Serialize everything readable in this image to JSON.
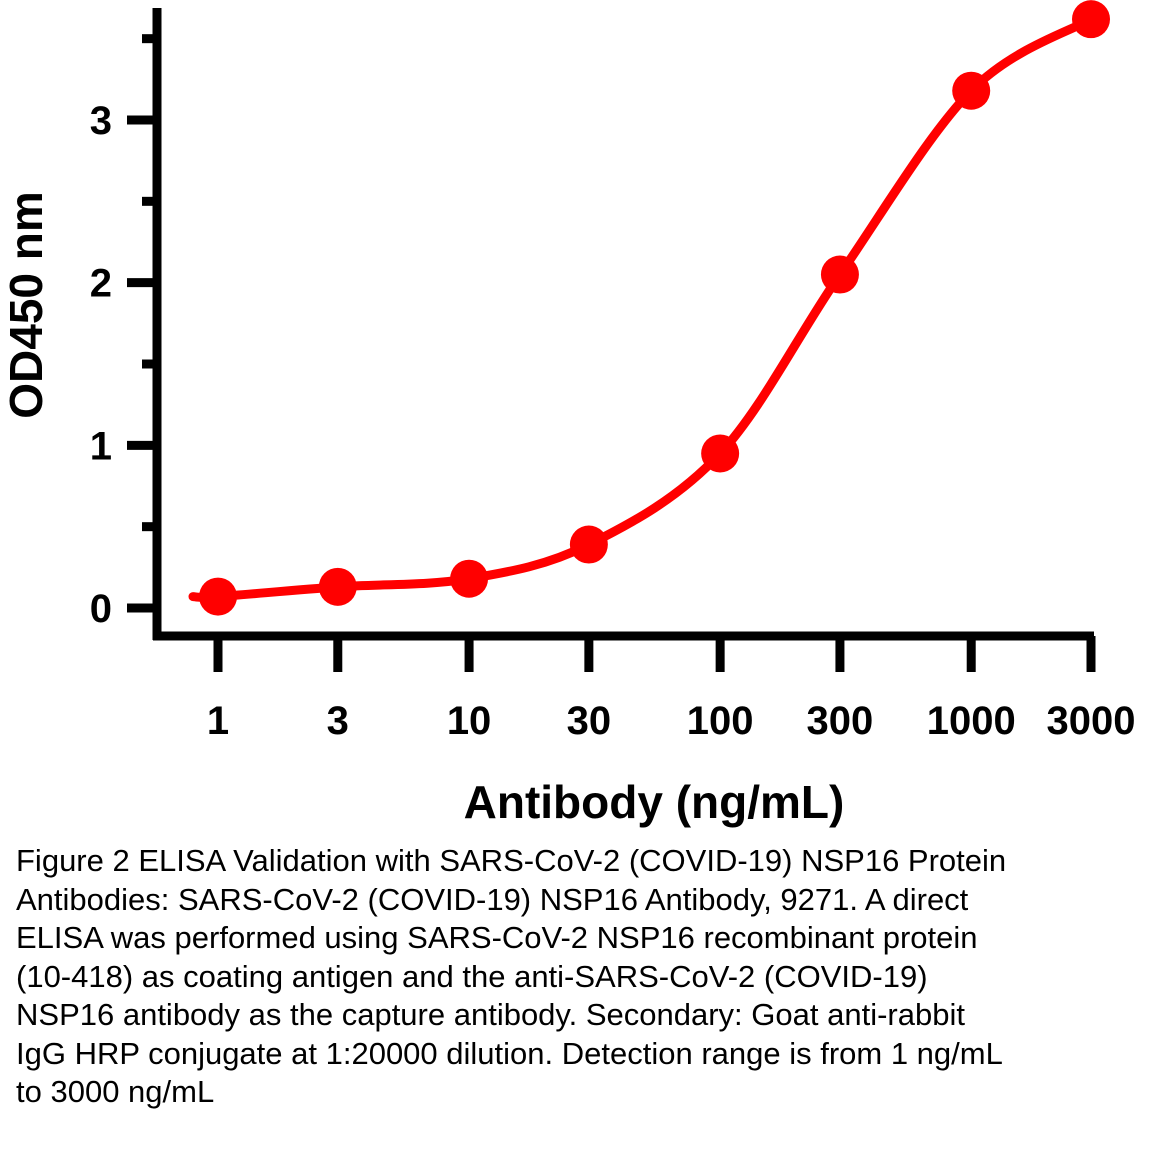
{
  "chart_data": {
    "type": "line",
    "xscale": "log",
    "x": [
      1,
      3,
      10,
      30,
      100,
      300,
      1000,
      3000
    ],
    "x_tick_labels": [
      "1",
      "3",
      "10",
      "30",
      "100",
      "300",
      "1000",
      "3000"
    ],
    "series": [
      {
        "name": "NSP16 Antibody",
        "values": [
          0.07,
          0.13,
          0.18,
          0.39,
          0.95,
          2.05,
          3.18,
          3.62
        ],
        "color": "#ff0000"
      }
    ],
    "xlabel": "Antibody (ng/mL)",
    "ylabel": "OD450 nm",
    "ylim": [
      -0.15,
      3.7
    ],
    "y_ticks": [
      0,
      1,
      2,
      3
    ],
    "y_tick_labels": [
      "0",
      "1",
      "2",
      "3"
    ],
    "y_minor_ticks": [
      0.5,
      1.5,
      2.5,
      3.5
    ]
  },
  "caption": "Figure 2 ELISA Validation with SARS-CoV-2 (COVID-19) NSP16 Protein Antibodies: SARS-CoV-2 (COVID-19) NSP16 Antibody, 9271. A direct ELISA was performed using SARS-CoV-2 NSP16 recombinant protein (10-418) as coating antigen and the anti-SARS-CoV-2 (COVID-19) NSP16 antibody as the capture antibody. Secondary: Goat anti-rabbit IgG HRP conjugate at 1:20000 dilution. Detection range is from 1 ng/mL to 3000 ng/mL"
}
